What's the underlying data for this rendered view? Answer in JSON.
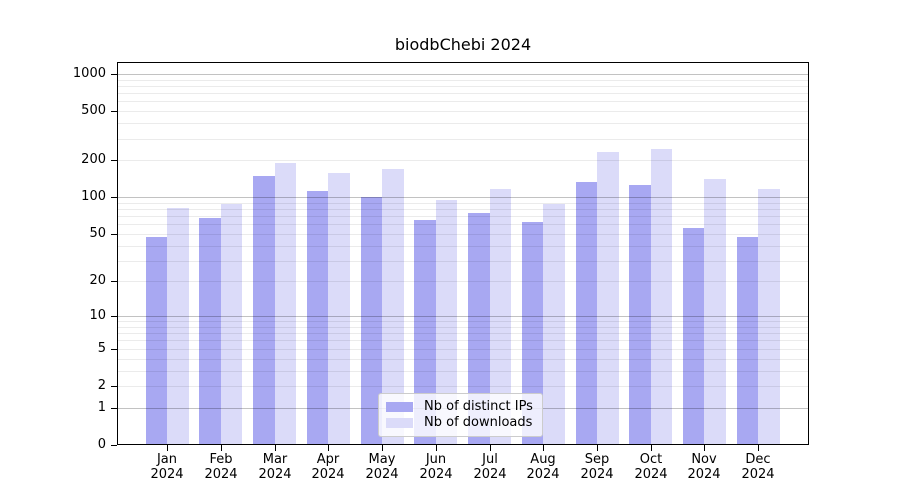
{
  "chart_data": {
    "type": "bar",
    "title": "biodbChebi 2024",
    "categories": [
      "Jan 2024",
      "Feb 2024",
      "Mar 2024",
      "Apr 2024",
      "May 2024",
      "Jun 2024",
      "Jul 2024",
      "Aug 2024",
      "Sep 2024",
      "Oct 2024",
      "Nov 2024",
      "Dec 2024"
    ],
    "series": [
      {
        "name": "Nb of distinct IPs",
        "color": "#a8a8f2",
        "values": [
          47,
          68,
          148,
          112,
          100,
          65,
          74,
          63,
          133,
          125,
          56,
          47
        ]
      },
      {
        "name": "Nb of downloads",
        "color": "#dbdbf9",
        "values": [
          82,
          88,
          190,
          156,
          170,
          94,
          117,
          88,
          231,
          246,
          140,
          116
        ]
      }
    ],
    "xlabel": "",
    "ylabel": "",
    "yscale": "log1p",
    "ylim": [
      0,
      1250
    ],
    "yticks": [
      0,
      1,
      2,
      5,
      10,
      20,
      50,
      100,
      200,
      500,
      1000
    ],
    "grid": "both",
    "legend_position": "lower center",
    "colors": {
      "grid_minor": "rgba(0,0,0,0.08)",
      "grid_major": "rgba(0,0,0,0.24)",
      "axis": "#000000",
      "background": "#ffffff"
    }
  }
}
